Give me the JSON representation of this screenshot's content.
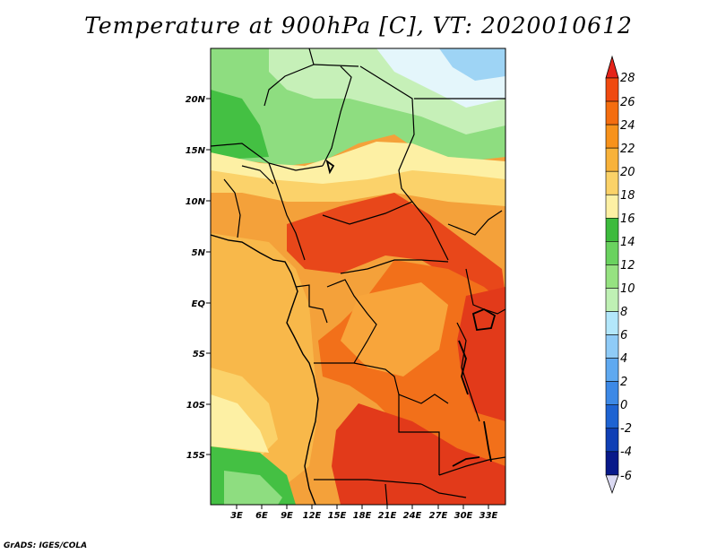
{
  "title": "Temperature at 900hPa [C], VT: 2020010612",
  "footer": "GrADS: IGES/COLA",
  "map": {
    "lat_labels": [
      "20N",
      "15N",
      "10N",
      "5N",
      "EQ",
      "5S",
      "10S",
      "15S"
    ],
    "lon_labels": [
      "3E",
      "6E",
      "9E",
      "12E",
      "15E",
      "18E",
      "21E",
      "24E",
      "27E",
      "30E",
      "33E"
    ]
  },
  "colorbar": {
    "labels": [
      "28",
      "26",
      "24",
      "22",
      "20",
      "18",
      "16",
      "14",
      "12",
      "10",
      "8",
      "6",
      "4",
      "2",
      "0",
      "-2",
      "-4",
      "-6"
    ],
    "colors": [
      "#e52319",
      "#f04a10",
      "#f46d0f",
      "#f7921b",
      "#f8b23a",
      "#fbd268",
      "#fdf0a4",
      "#3dbb3d",
      "#6ad25f",
      "#96e281",
      "#bff0b4",
      "#b3e7fb",
      "#8fcbf7",
      "#5fa9f0",
      "#3d89e6",
      "#1e63d2",
      "#0f3fb5",
      "#08198a",
      "#dad9f2"
    ]
  },
  "palette": {
    "red": "#e23a1a",
    "orange": "#f2701a",
    "amber": "#f8a53b",
    "yellow": "#fbd26a",
    "cream": "#fdf0a4",
    "green": "#44c043",
    "lightgreen": "#8edd80",
    "palegreen": "#c6f0b8",
    "paleblue": "#e4f6fb",
    "blue": "#9ed4f5"
  }
}
